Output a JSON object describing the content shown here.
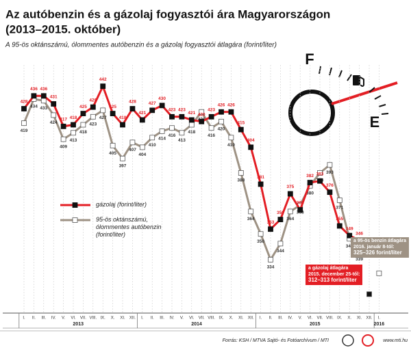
{
  "chart_data": {
    "type": "line",
    "title": "Az autóbenzin és a gázolaj fogyasztói ára Magyarországon",
    "title_line2": "(2013–2015. október)",
    "subtitle": "A 95-ös oktánszámú, ólommentes autóbenzin és a gázolaj fogyasztói átlagára (forint/liter)",
    "categories": [
      "I.",
      "II.",
      "III.",
      "IV.",
      "V.",
      "VI.",
      "VII.",
      "VIII.",
      "IX.",
      "X.",
      "XI.",
      "XII.",
      "I.",
      "II.",
      "III.",
      "IV.",
      "V.",
      "VI.",
      "VII.",
      "VIII.",
      "IX.",
      "X.",
      "XI.",
      "XII.",
      "I.",
      "II.",
      "III.",
      "IV.",
      "V.",
      "VI.",
      "VII.",
      "VIII.",
      "IX.",
      "X.",
      "XI.",
      "XII.",
      "I."
    ],
    "years": [
      "2013",
      "2014",
      "2015",
      "2016"
    ],
    "series": [
      {
        "name": "gázolaj (forint/liter)",
        "color": "#e31e24",
        "marker": "#111111",
        "values": [
          428,
          436,
          436,
          431,
          417,
          418,
          425,
          429,
          442,
          425,
          418,
          428,
          421,
          427,
          430,
          423,
          423,
          421,
          420,
          423,
          426,
          426,
          415,
          404,
          381,
          353,
          359,
          375,
          365,
          382,
          383,
          376,
          355,
          349,
          346,
          null,
          null
        ]
      },
      {
        "name": "95-ös oktánszámú, ólommentes autóbenzin (forint/liter)",
        "color": "#9e9284",
        "marker": "#ffffff",
        "values": [
          419,
          434,
          433,
          424,
          409,
          413,
          418,
          423,
          427,
          405,
          397,
          407,
          404,
          410,
          414,
          416,
          413,
          418,
          426,
          416,
          420,
          410,
          388,
          364,
          350,
          334,
          344,
          364,
          368,
          380,
          388,
          393,
          371,
          347,
          339,
          null,
          null
        ]
      }
    ],
    "annotations": [
      {
        "lines": [
          "a gázolaj átlagára",
          "2015. december 25-től:",
          "312–313 forint/liter"
        ],
        "value": 312.5,
        "color": "#e31e24",
        "series": 0
      },
      {
        "lines": [
          "a 95-ös benzin átlagára",
          "2016. január 8-tól:",
          "325–326 forint/liter"
        ],
        "value": 325.5,
        "color": "#9e9284",
        "series": 1
      }
    ],
    "ylim": [
      302,
      451
    ],
    "grid": true,
    "gauge": {
      "full": "F",
      "empty": "E"
    },
    "source": "Forrás: KSH / MTVA Sajtó- és Fotóarchívum / MTI",
    "website": "www.mti.hu"
  }
}
